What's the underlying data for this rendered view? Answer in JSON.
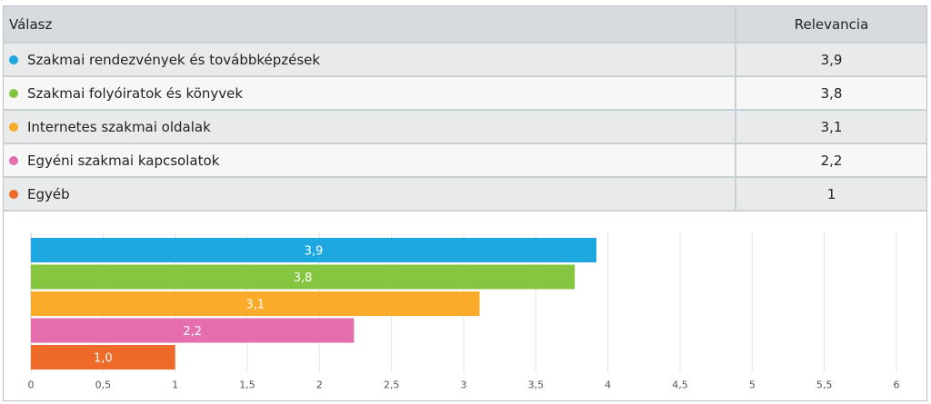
{
  "table": {
    "headers": [
      "Válasz",
      "Relevancia"
    ],
    "rows": [
      {
        "label": "Szakmai rendezvények és továbbképzések",
        "value": "3,9",
        "color": "#1fa8e0"
      },
      {
        "label": "Szakmai folyóiratok és könyvek",
        "value": "3,8",
        "color": "#86c540"
      },
      {
        "label": "Internetes szakmai oldalak",
        "value": "3,1",
        "color": "#fbab2a"
      },
      {
        "label": "Egyéni szakmai kapcsolatok",
        "value": "2,2",
        "color": "#e56fae"
      },
      {
        "label": "Egyéb",
        "value": "1",
        "color": "#ee6a29"
      }
    ]
  },
  "chart_data": {
    "type": "bar",
    "orientation": "horizontal",
    "categories": [
      "Szakmai rendezvények és továbbképzések",
      "Szakmai folyóiratok és könyvek",
      "Internetes szakmai oldalak",
      "Egyéni szakmai kapcsolatok",
      "Egyéb"
    ],
    "values": [
      3.92,
      3.77,
      3.11,
      2.24,
      1.0
    ],
    "data_labels": [
      "3,9",
      "3,8",
      "3,1",
      "2,2",
      "1,0"
    ],
    "colors": [
      "#1fa8e0",
      "#86c540",
      "#fbab2a",
      "#e56fae",
      "#ee6a29"
    ],
    "xlim": [
      0,
      6
    ],
    "xticks": [
      0,
      0.5,
      1,
      1.5,
      2,
      2.5,
      3,
      3.5,
      4,
      4.5,
      5,
      5.5,
      6
    ],
    "xtick_labels": [
      "0",
      "0,5",
      "1",
      "1,5",
      "2",
      "2,5",
      "3",
      "3,5",
      "4",
      "4,5",
      "5",
      "5,5",
      "6"
    ],
    "grid": true,
    "title": "",
    "xlabel": "",
    "ylabel": ""
  }
}
